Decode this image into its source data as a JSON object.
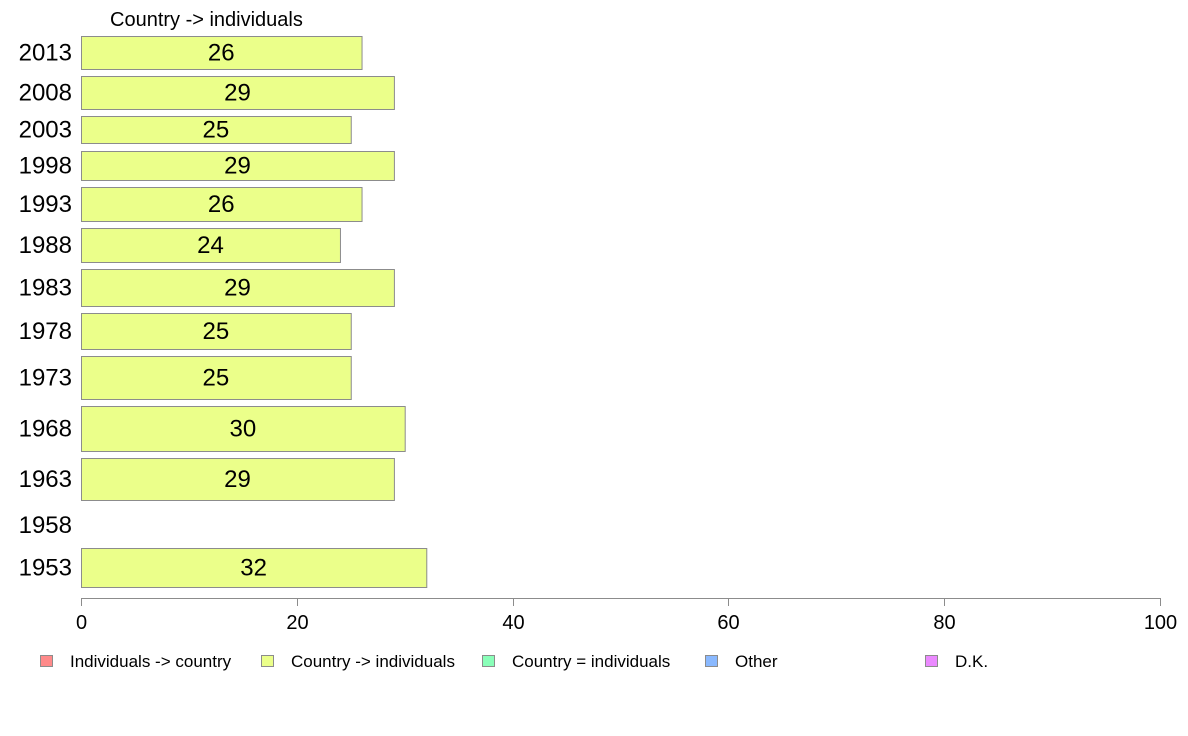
{
  "chart_data": {
    "type": "bar",
    "orientation": "horizontal",
    "series_header": "Country -> individuals",
    "categories": [
      "2013",
      "2008",
      "2003",
      "1998",
      "1993",
      "1988",
      "1983",
      "1978",
      "1973",
      "1968",
      "1963",
      "1958",
      "1953"
    ],
    "series": [
      {
        "name": "Country -> individuals",
        "color": "#ebff8a",
        "values": [
          26,
          29,
          25,
          29,
          26,
          24,
          29,
          25,
          25,
          30,
          29,
          null,
          32
        ]
      }
    ],
    "value_labels": [
      "26",
      "29",
      "25",
      "29",
      "26",
      "24",
      "29",
      "25",
      "25",
      "30",
      "29",
      "",
      "32"
    ],
    "xlim": [
      0,
      100
    ],
    "xticks": [
      "0",
      "20",
      "40",
      "60",
      "80",
      "100"
    ],
    "grid": false,
    "legend_position": "bottom",
    "legend": [
      {
        "label": "Individuals -> country",
        "color": "#ff8a8a"
      },
      {
        "label": "Country -> individuals",
        "color": "#ebff8a"
      },
      {
        "label": "Country = individuals",
        "color": "#8affb9"
      },
      {
        "label": "Other",
        "color": "#8ab9ff"
      },
      {
        "label": "D.K.",
        "color": "#eb8aff"
      }
    ]
  }
}
